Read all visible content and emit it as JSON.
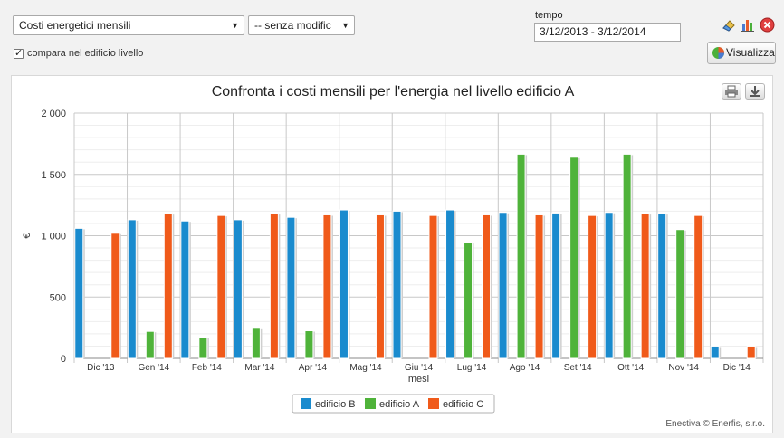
{
  "toolbar": {
    "report_select": "Costi energetici mensili",
    "modifier_select": "-- senza modific",
    "compare_label": "compara nel edificio livello",
    "tempo_label": "tempo",
    "date_range": "3/12/2013 - 3/12/2014",
    "visualizza_label": "Visualizza"
  },
  "footer": {
    "credit": "Enectiva © Enerfis, s.r.o."
  },
  "colors": {
    "edificio_b": "#1a8bce",
    "edificio_a": "#4fb33a",
    "edificio_c": "#f05a1a"
  },
  "chart_data": {
    "type": "bar",
    "title": "Confronta i costi mensili per l'energia nel livello edificio A",
    "xlabel": "mesi",
    "ylabel": "€",
    "ylim": [
      0,
      2000
    ],
    "yticks": [
      0,
      500,
      1000,
      1500,
      2000
    ],
    "ytick_labels": [
      "0",
      "500",
      "1 000",
      "1 500",
      "2 000"
    ],
    "grid": true,
    "legend_position": "bottom-center",
    "categories": [
      "Dic '13",
      "Gen '14",
      "Feb '14",
      "Mar '14",
      "Apr '14",
      "Mag '14",
      "Giu '14",
      "Lug '14",
      "Ago '14",
      "Set '14",
      "Ott '14",
      "Nov '14",
      "Dic '14"
    ],
    "series": [
      {
        "name": "edificio B",
        "color": "#1a8bce",
        "values": [
          1060,
          1130,
          1120,
          1130,
          1150,
          1210,
          1200,
          1210,
          1190,
          1185,
          1190,
          1180,
          100
        ]
      },
      {
        "name": "edificio A",
        "color": "#4fb33a",
        "values": [
          null,
          220,
          170,
          245,
          225,
          null,
          null,
          945,
          1665,
          1640,
          1665,
          1050,
          null
        ]
      },
      {
        "name": "edificio C",
        "color": "#f05a1a",
        "values": [
          1020,
          1180,
          1165,
          1180,
          1170,
          1170,
          1165,
          1170,
          1170,
          1165,
          1180,
          1165,
          100
        ]
      }
    ]
  }
}
